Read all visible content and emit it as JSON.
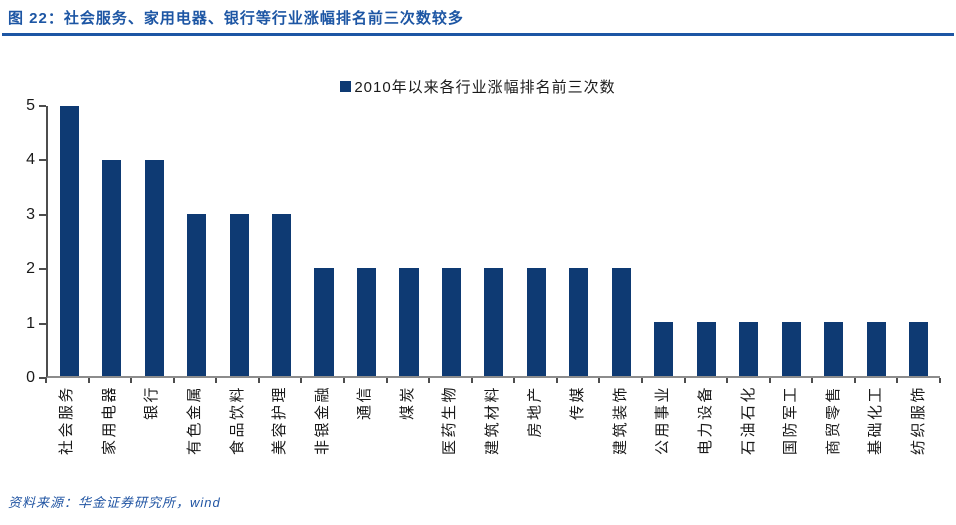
{
  "page": {
    "title": "图 22：社会服务、家用电器、银行等行业涨幅排名前三次数较多",
    "source": "资料来源：华金证券研究所，wind"
  },
  "colors": {
    "accent_blue": "#1d56a4",
    "bar_navy": "#0e3a73",
    "axis_dark": "#4d4d4d",
    "axis_light": "#8c8c8c"
  },
  "chart_data": {
    "type": "bar",
    "title": "2010年以来各行业涨幅排名前三次数",
    "legend": [
      {
        "label": "2010年以来各行业涨幅排名前三次数",
        "color": "#0e3a73"
      }
    ],
    "legend_position": "top-center",
    "categories": [
      "社会服务",
      "家用电器",
      "银行",
      "有色金属",
      "食品饮料",
      "美容护理",
      "非银金融",
      "通信",
      "煤炭",
      "医药生物",
      "建筑材料",
      "房地产",
      "传媒",
      "建筑装饰",
      "公用事业",
      "电力设备",
      "石油石化",
      "国防军工",
      "商贸零售",
      "基础化工",
      "纺织服饰"
    ],
    "values": [
      5,
      4,
      4,
      3,
      3,
      3,
      2,
      2,
      2,
      2,
      2,
      2,
      2,
      2,
      1,
      1,
      1,
      1,
      1,
      1,
      1
    ],
    "xlabel": "",
    "ylabel": "",
    "ylim": [
      0,
      5
    ],
    "yticks": [
      0,
      1,
      2,
      3,
      4,
      5
    ],
    "grid": false,
    "bar_color": "#0e3a73",
    "x_label_rotation": -90
  }
}
